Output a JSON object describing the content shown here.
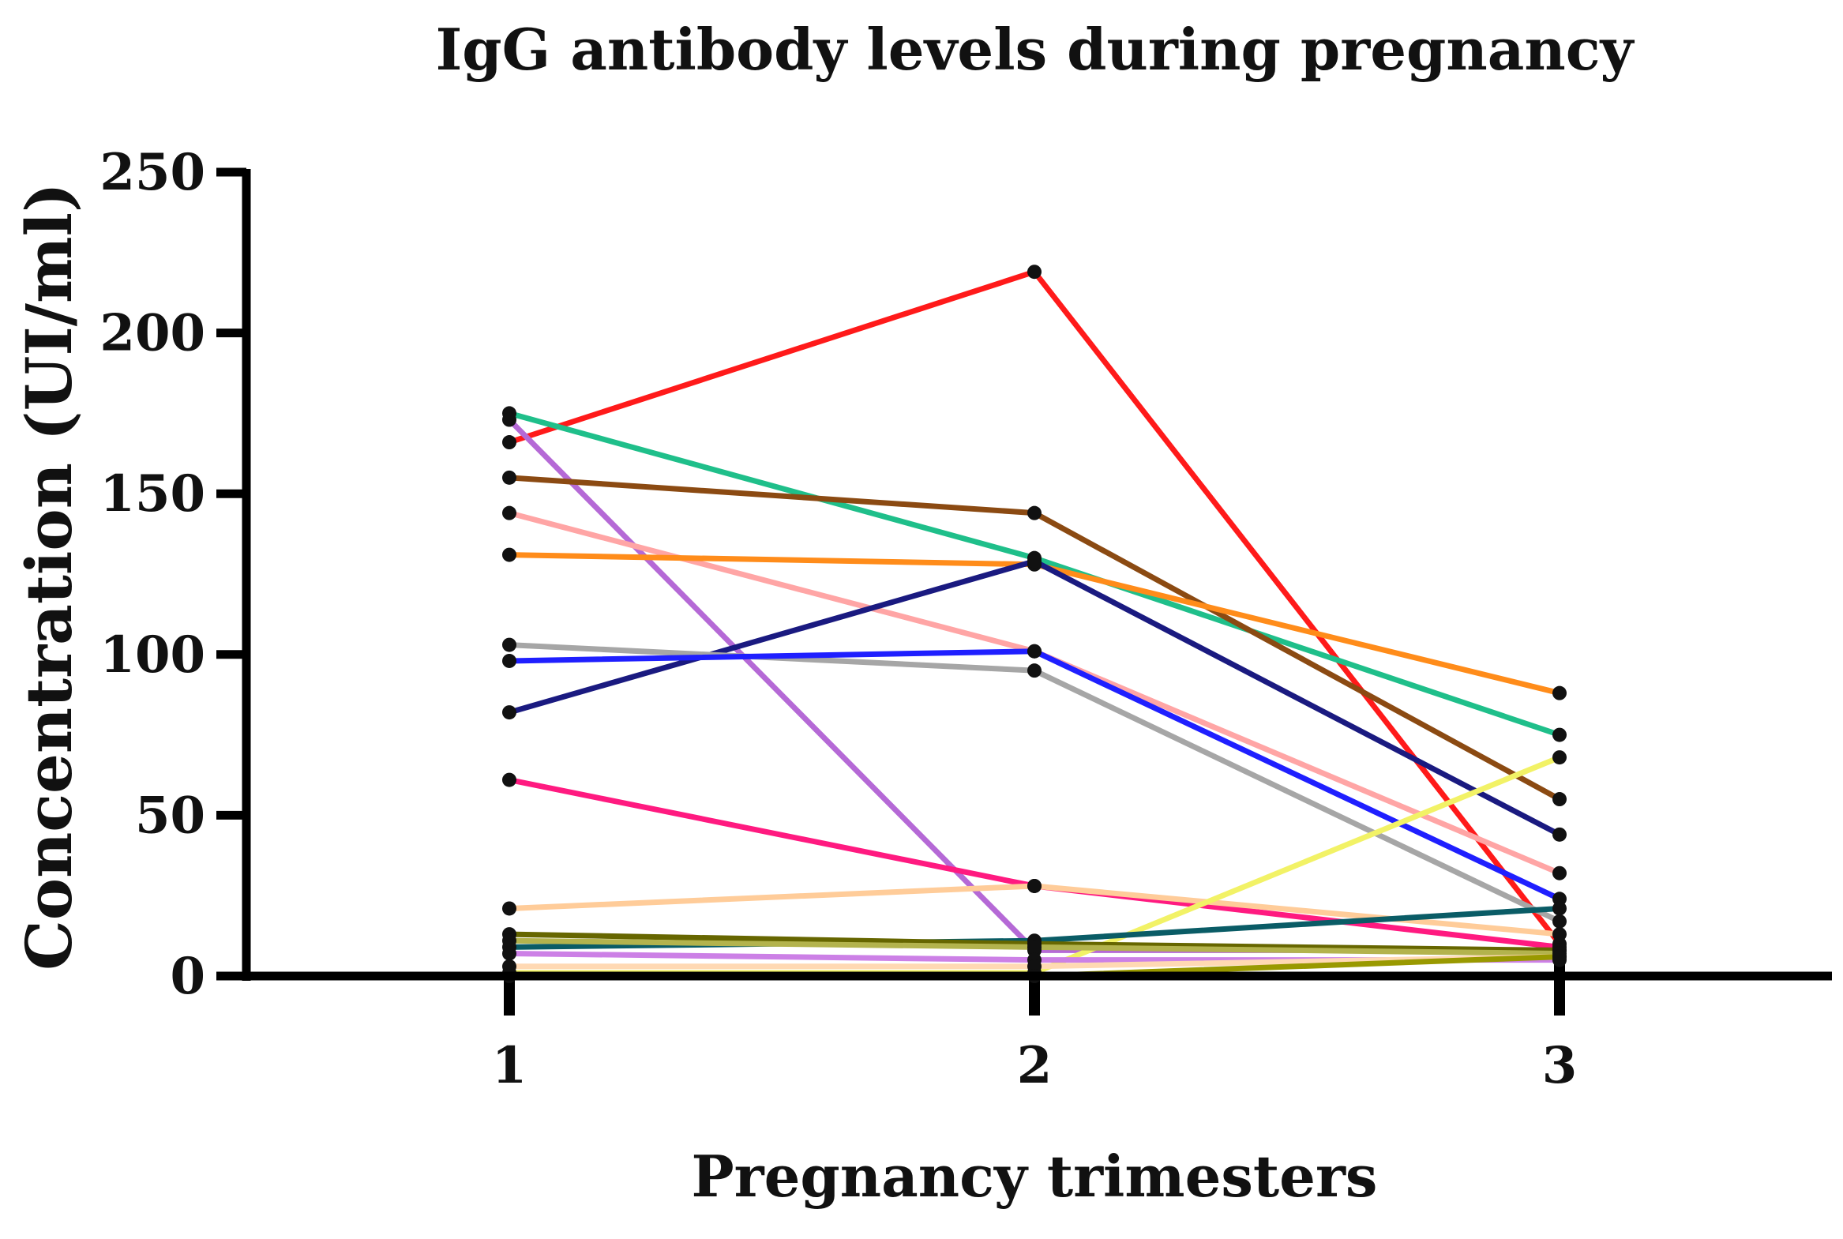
{
  "chart_data": {
    "type": "line",
    "title": "IgG antibody levels during pregnancy",
    "xlabel": "Pregnancy trimesters",
    "ylabel": "Concentration (UI/ml)",
    "categories": [
      "1",
      "2",
      "3"
    ],
    "ylim": [
      0,
      250
    ],
    "yticks": [
      "0",
      "50",
      "100",
      "150",
      "200",
      "250"
    ],
    "grid": false,
    "legend": "none",
    "marker_color": "#111111",
    "series": [
      {
        "name": "red",
        "color": "#ff1a1a",
        "values": [
          166,
          219,
          10
        ]
      },
      {
        "name": "green",
        "color": "#1fbf8a",
        "values": [
          175,
          130,
          75
        ]
      },
      {
        "name": "purple",
        "color": "#b569d6",
        "values": [
          173,
          8,
          8
        ]
      },
      {
        "name": "brown",
        "color": "#8b4a12",
        "values": [
          155,
          144,
          55
        ]
      },
      {
        "name": "pink",
        "color": "#ffa5a5",
        "values": [
          144,
          101,
          32
        ]
      },
      {
        "name": "orange",
        "color": "#ff8c1a",
        "values": [
          131,
          128,
          88
        ]
      },
      {
        "name": "navy",
        "color": "#1a1a80",
        "values": [
          82,
          129,
          44
        ]
      },
      {
        "name": "gray",
        "color": "#a6a6a6",
        "values": [
          103,
          95,
          17
        ]
      },
      {
        "name": "blue",
        "color": "#1f1fff",
        "values": [
          98,
          101,
          24
        ]
      },
      {
        "name": "magenta",
        "color": "#ff1a80",
        "values": [
          61,
          28,
          9
        ]
      },
      {
        "name": "light-orange",
        "color": "#ffcc99",
        "values": [
          21,
          28,
          13
        ]
      },
      {
        "name": "yellow",
        "color": "#f2f266",
        "values": [
          1,
          1,
          68
        ]
      },
      {
        "name": "teal",
        "color": "#0a5c66",
        "values": [
          9,
          11,
          21
        ]
      },
      {
        "name": "olive",
        "color": "#666600",
        "values": [
          13,
          10,
          8
        ]
      },
      {
        "name": "khaki",
        "color": "#b3b34d",
        "values": [
          11,
          9,
          7
        ]
      },
      {
        "name": "lavender",
        "color": "#cc80e6",
        "values": [
          7,
          5,
          5
        ]
      },
      {
        "name": "peach",
        "color": "#ffd9b3",
        "values": [
          3,
          3,
          6
        ]
      },
      {
        "name": "olive-yellow",
        "color": "#999900",
        "values": [
          0,
          0,
          6
        ]
      }
    ]
  }
}
